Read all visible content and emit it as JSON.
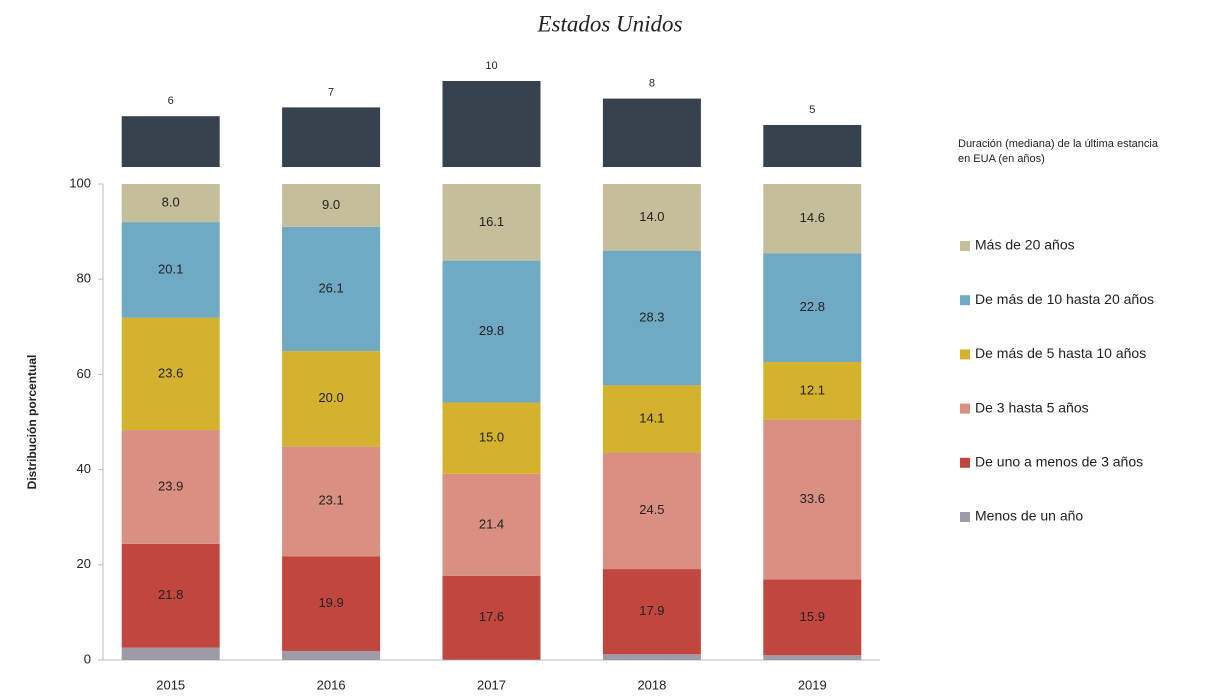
{
  "chart_data": {
    "type": "bar",
    "stacked": true,
    "title": "Estados Unidos",
    "ylabel": "Distribución  porcentual",
    "categories": [
      "2015",
      "2016",
      "2017",
      "2018",
      "2019"
    ],
    "ylim": [
      0,
      100
    ],
    "yticks": [
      0,
      20,
      40,
      60,
      80,
      100
    ],
    "series": [
      {
        "name": "Menos de un año",
        "color": "#9e9aa8",
        "values": [
          2.6,
          1.9,
          0.1,
          1.2,
          1.0
        ]
      },
      {
        "name": "De uno a menos de 3 años",
        "color": "#c0463e",
        "values": [
          21.8,
          19.9,
          17.6,
          17.9,
          15.9
        ],
        "value_labels": [
          "21.8",
          "19.9",
          "17.6",
          "17.9",
          "15.9"
        ]
      },
      {
        "name": "De 3 hasta 5 años",
        "color": "#d99082",
        "values": [
          23.9,
          23.1,
          21.4,
          24.5,
          33.6
        ],
        "value_labels": [
          "23.9",
          "23.1",
          "21.4",
          "24.5",
          "33.6"
        ]
      },
      {
        "name": "De más de 5 hasta 10 años",
        "color": "#d4b22e",
        "values": [
          23.6,
          20.0,
          15.0,
          14.1,
          12.1
        ],
        "value_labels": [
          "23.6",
          "20.0",
          "15.0",
          "14.1",
          "12.1"
        ]
      },
      {
        "name": "De más de 10 hasta 20 años",
        "color": "#6fa9c4",
        "values": [
          20.1,
          26.1,
          29.8,
          28.3,
          22.8
        ],
        "value_labels": [
          "20.1",
          "26.1",
          "29.8",
          "28.3",
          "22.8"
        ]
      },
      {
        "name": "Más de 20 años",
        "color": "#c4be9a",
        "values": [
          8.0,
          9.0,
          16.1,
          14.0,
          14.6
        ],
        "value_labels": [
          "8.0",
          "9.0",
          "16.1",
          "14.0",
          "14.6"
        ]
      }
    ],
    "median": {
      "title": "Duración (mediana) de la última estancia en EUA (en años)",
      "color": "#36434e",
      "values": [
        6,
        7,
        10,
        8,
        5
      ]
    }
  }
}
